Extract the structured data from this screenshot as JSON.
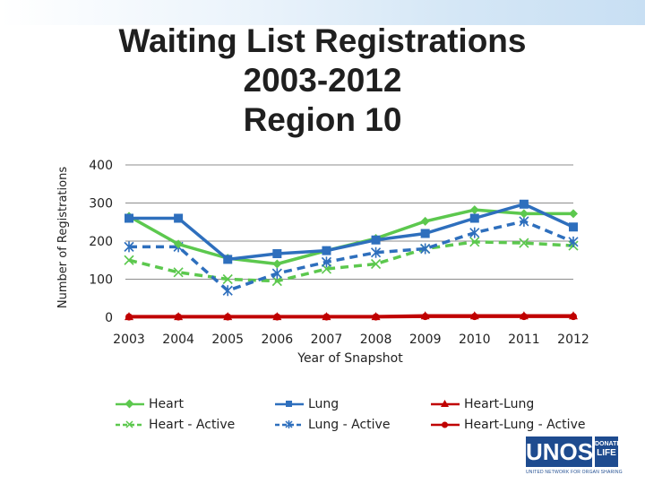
{
  "page": {
    "title_lines": [
      "Waiting List Registrations",
      "2003-2012",
      "Region 10"
    ]
  },
  "logo": {
    "main": "UNOS",
    "side_top": "DONATE",
    "side_bottom": "LIFE",
    "tagline": "UNITED NETWORK FOR ORGAN SHARING"
  },
  "chart_data": {
    "type": "line",
    "title": "Waiting List Registrations 2003-2012 Region 10",
    "xlabel": "Year of Snapshot",
    "ylabel": "Number of Registrations",
    "x": [
      "2003",
      "2004",
      "2005",
      "2006",
      "2007",
      "2008",
      "2009",
      "2010",
      "2011",
      "2012"
    ],
    "ylim": [
      0,
      400
    ],
    "yticks": [
      0,
      100,
      200,
      300,
      400
    ],
    "grid": true,
    "legend_position": "bottom",
    "series": [
      {
        "name": "Heart",
        "color": "#5cc84e",
        "dash": "solid",
        "marker": "diamond",
        "values": [
          265,
          192,
          155,
          140,
          175,
          207,
          252,
          282,
          272,
          272
        ]
      },
      {
        "name": "Lung",
        "color": "#2e6fbd",
        "dash": "solid",
        "marker": "square",
        "values": [
          260,
          260,
          152,
          167,
          175,
          203,
          220,
          260,
          297,
          237
        ]
      },
      {
        "name": "Heart-Lung",
        "color": "#c00000",
        "dash": "solid",
        "marker": "triangle",
        "values": [
          2,
          2,
          2,
          2,
          2,
          2,
          4,
          4,
          4,
          4
        ]
      },
      {
        "name": "Heart - Active",
        "color": "#5cc84e",
        "dash": "dashed",
        "marker": "x",
        "values": [
          150,
          118,
          100,
          95,
          127,
          140,
          180,
          198,
          195,
          188
        ]
      },
      {
        "name": "Lung - Active",
        "color": "#2e6fbd",
        "dash": "dashed",
        "marker": "star",
        "values": [
          185,
          185,
          70,
          115,
          145,
          170,
          180,
          222,
          252,
          198
        ]
      },
      {
        "name": "Heart-Lung - Active",
        "color": "#c00000",
        "dash": "solid",
        "marker": "circle",
        "values": [
          1,
          1,
          1,
          1,
          1,
          1,
          2,
          2,
          2,
          2
        ]
      }
    ]
  }
}
